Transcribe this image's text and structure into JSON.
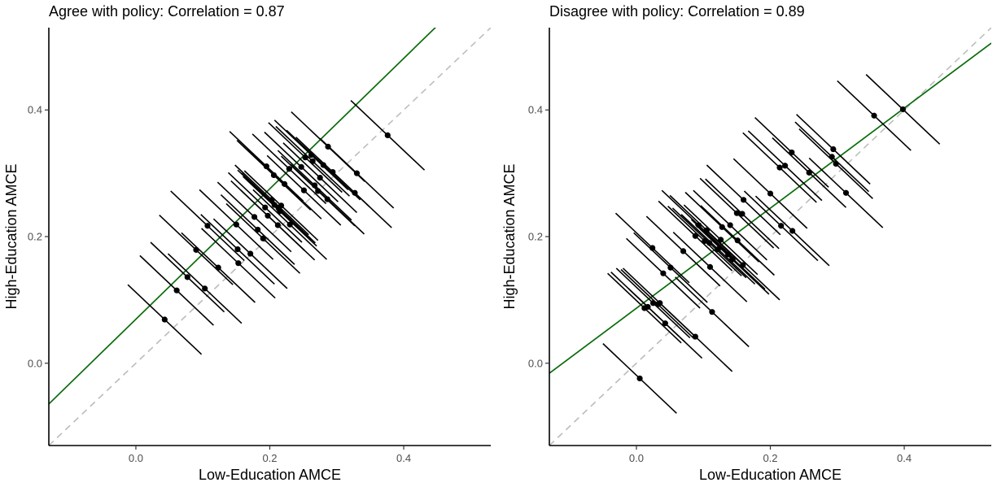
{
  "chart_data": [
    {
      "type": "scatter",
      "title": "Agree with policy: Correlation = 0.87",
      "xlabel": "Low-Education AMCE",
      "ylabel": "High-Education AMCE",
      "xlim": [
        -0.13,
        0.53
      ],
      "ylim": [
        -0.13,
        0.53
      ],
      "x_ticks": [
        0.0,
        0.2,
        0.4
      ],
      "y_ticks": [
        0.0,
        0.2,
        0.4
      ],
      "x_tick_labels": [
        "0.0",
        "0.2",
        "0.4"
      ],
      "y_tick_labels": [
        "0.0",
        "0.2",
        "0.4"
      ],
      "ci_offset": 0.055,
      "reference_line": {
        "style": "dashed",
        "color": "#bdbdbd",
        "slope": 1,
        "intercept": 0
      },
      "fit_line": {
        "color": "#0a6b0a",
        "slope": 1.03,
        "intercept": 0.0695
      },
      "points": [
        {
          "x": 0.043,
          "y": 0.069
        },
        {
          "x": 0.061,
          "y": 0.115
        },
        {
          "x": 0.077,
          "y": 0.136
        },
        {
          "x": 0.103,
          "y": 0.118
        },
        {
          "x": 0.09,
          "y": 0.179
        },
        {
          "x": 0.107,
          "y": 0.217
        },
        {
          "x": 0.123,
          "y": 0.151
        },
        {
          "x": 0.15,
          "y": 0.219
        },
        {
          "x": 0.152,
          "y": 0.18
        },
        {
          "x": 0.153,
          "y": 0.158
        },
        {
          "x": 0.171,
          "y": 0.173
        },
        {
          "x": 0.182,
          "y": 0.211
        },
        {
          "x": 0.19,
          "y": 0.197
        },
        {
          "x": 0.177,
          "y": 0.231
        },
        {
          "x": 0.193,
          "y": 0.246
        },
        {
          "x": 0.197,
          "y": 0.233
        },
        {
          "x": 0.203,
          "y": 0.258
        },
        {
          "x": 0.207,
          "y": 0.25
        },
        {
          "x": 0.213,
          "y": 0.245
        },
        {
          "x": 0.215,
          "y": 0.24
        },
        {
          "x": 0.217,
          "y": 0.249
        },
        {
          "x": 0.212,
          "y": 0.218
        },
        {
          "x": 0.23,
          "y": 0.219
        },
        {
          "x": 0.195,
          "y": 0.311
        },
        {
          "x": 0.206,
          "y": 0.297
        },
        {
          "x": 0.222,
          "y": 0.283
        },
        {
          "x": 0.229,
          "y": 0.307
        },
        {
          "x": 0.247,
          "y": 0.31
        },
        {
          "x": 0.251,
          "y": 0.273
        },
        {
          "x": 0.253,
          "y": 0.325
        },
        {
          "x": 0.262,
          "y": 0.329
        },
        {
          "x": 0.264,
          "y": 0.319
        },
        {
          "x": 0.267,
          "y": 0.281
        },
        {
          "x": 0.272,
          "y": 0.272
        },
        {
          "x": 0.275,
          "y": 0.293
        },
        {
          "x": 0.28,
          "y": 0.313
        },
        {
          "x": 0.287,
          "y": 0.342
        },
        {
          "x": 0.286,
          "y": 0.259
        },
        {
          "x": 0.294,
          "y": 0.302
        },
        {
          "x": 0.327,
          "y": 0.269
        },
        {
          "x": 0.33,
          "y": 0.3
        },
        {
          "x": 0.376,
          "y": 0.36
        }
      ]
    },
    {
      "type": "scatter",
      "title": "Disagree with policy: Correlation = 0.89",
      "xlabel": "Low-Education AMCE",
      "ylabel": "High-Education AMCE",
      "xlim": [
        -0.13,
        0.53
      ],
      "ylim": [
        -0.13,
        0.53
      ],
      "x_ticks": [
        0.0,
        0.2,
        0.4
      ],
      "y_ticks": [
        0.0,
        0.2,
        0.4
      ],
      "x_tick_labels": [
        "0.0",
        "0.2",
        "0.4"
      ],
      "y_tick_labels": [
        "0.0",
        "0.2",
        "0.4"
      ],
      "ci_offset": 0.055,
      "reference_line": {
        "style": "dashed",
        "color": "#bdbdbd",
        "slope": 1,
        "intercept": 0
      },
      "fit_line": {
        "color": "#0a6b0a",
        "slope": 0.79,
        "intercept": 0.0869
      },
      "points": [
        {
          "x": 0.005,
          "y": -0.024
        },
        {
          "x": 0.012,
          "y": 0.087
        },
        {
          "x": 0.017,
          "y": 0.089
        },
        {
          "x": 0.025,
          "y": 0.095
        },
        {
          "x": 0.032,
          "y": 0.093
        },
        {
          "x": 0.035,
          "y": 0.095
        },
        {
          "x": 0.043,
          "y": 0.063
        },
        {
          "x": 0.088,
          "y": 0.042
        },
        {
          "x": 0.113,
          "y": 0.081
        },
        {
          "x": 0.024,
          "y": 0.182
        },
        {
          "x": 0.04,
          "y": 0.142
        },
        {
          "x": 0.051,
          "y": 0.151
        },
        {
          "x": 0.07,
          "y": 0.177
        },
        {
          "x": 0.088,
          "y": 0.201
        },
        {
          "x": 0.093,
          "y": 0.218
        },
        {
          "x": 0.102,
          "y": 0.193
        },
        {
          "x": 0.105,
          "y": 0.21
        },
        {
          "x": 0.109,
          "y": 0.19
        },
        {
          "x": 0.11,
          "y": 0.152
        },
        {
          "x": 0.122,
          "y": 0.18
        },
        {
          "x": 0.126,
          "y": 0.195
        },
        {
          "x": 0.128,
          "y": 0.215
        },
        {
          "x": 0.137,
          "y": 0.172
        },
        {
          "x": 0.14,
          "y": 0.218
        },
        {
          "x": 0.143,
          "y": 0.164
        },
        {
          "x": 0.15,
          "y": 0.237
        },
        {
          "x": 0.151,
          "y": 0.194
        },
        {
          "x": 0.158,
          "y": 0.236
        },
        {
          "x": 0.159,
          "y": 0.155
        },
        {
          "x": 0.16,
          "y": 0.258
        },
        {
          "x": 0.2,
          "y": 0.268
        },
        {
          "x": 0.214,
          "y": 0.309
        },
        {
          "x": 0.216,
          "y": 0.217
        },
        {
          "x": 0.222,
          "y": 0.312
        },
        {
          "x": 0.232,
          "y": 0.333
        },
        {
          "x": 0.233,
          "y": 0.209
        },
        {
          "x": 0.258,
          "y": 0.301
        },
        {
          "x": 0.292,
          "y": 0.326
        },
        {
          "x": 0.294,
          "y": 0.338
        },
        {
          "x": 0.298,
          "y": 0.315
        },
        {
          "x": 0.313,
          "y": 0.269
        },
        {
          "x": 0.355,
          "y": 0.391
        },
        {
          "x": 0.398,
          "y": 0.401
        }
      ]
    }
  ]
}
